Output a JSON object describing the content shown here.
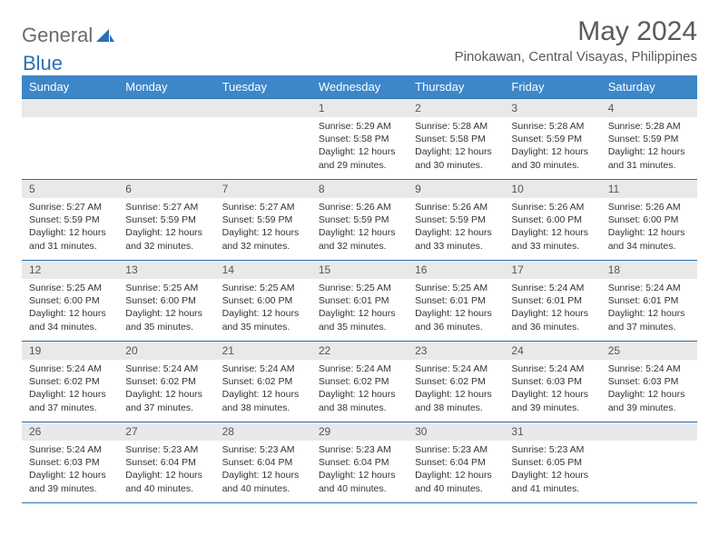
{
  "brand": {
    "part1": "General",
    "part2": "Blue"
  },
  "title": "May 2024",
  "location": "Pinokawan, Central Visayas, Philippines",
  "colors": {
    "header_bg": "#3d87c9",
    "border": "#2c6fb3",
    "daynum_bg": "#e9e9e9",
    "text": "#333333",
    "title_text": "#5a5a5a"
  },
  "weekdays": [
    "Sunday",
    "Monday",
    "Tuesday",
    "Wednesday",
    "Thursday",
    "Friday",
    "Saturday"
  ],
  "weeks": [
    [
      null,
      null,
      null,
      {
        "n": "1",
        "sr": "5:29 AM",
        "ss": "5:58 PM",
        "dl": "12 hours and 29 minutes."
      },
      {
        "n": "2",
        "sr": "5:28 AM",
        "ss": "5:58 PM",
        "dl": "12 hours and 30 minutes."
      },
      {
        "n": "3",
        "sr": "5:28 AM",
        "ss": "5:59 PM",
        "dl": "12 hours and 30 minutes."
      },
      {
        "n": "4",
        "sr": "5:28 AM",
        "ss": "5:59 PM",
        "dl": "12 hours and 31 minutes."
      }
    ],
    [
      {
        "n": "5",
        "sr": "5:27 AM",
        "ss": "5:59 PM",
        "dl": "12 hours and 31 minutes."
      },
      {
        "n": "6",
        "sr": "5:27 AM",
        "ss": "5:59 PM",
        "dl": "12 hours and 32 minutes."
      },
      {
        "n": "7",
        "sr": "5:27 AM",
        "ss": "5:59 PM",
        "dl": "12 hours and 32 minutes."
      },
      {
        "n": "8",
        "sr": "5:26 AM",
        "ss": "5:59 PM",
        "dl": "12 hours and 32 minutes."
      },
      {
        "n": "9",
        "sr": "5:26 AM",
        "ss": "5:59 PM",
        "dl": "12 hours and 33 minutes."
      },
      {
        "n": "10",
        "sr": "5:26 AM",
        "ss": "6:00 PM",
        "dl": "12 hours and 33 minutes."
      },
      {
        "n": "11",
        "sr": "5:26 AM",
        "ss": "6:00 PM",
        "dl": "12 hours and 34 minutes."
      }
    ],
    [
      {
        "n": "12",
        "sr": "5:25 AM",
        "ss": "6:00 PM",
        "dl": "12 hours and 34 minutes."
      },
      {
        "n": "13",
        "sr": "5:25 AM",
        "ss": "6:00 PM",
        "dl": "12 hours and 35 minutes."
      },
      {
        "n": "14",
        "sr": "5:25 AM",
        "ss": "6:00 PM",
        "dl": "12 hours and 35 minutes."
      },
      {
        "n": "15",
        "sr": "5:25 AM",
        "ss": "6:01 PM",
        "dl": "12 hours and 35 minutes."
      },
      {
        "n": "16",
        "sr": "5:25 AM",
        "ss": "6:01 PM",
        "dl": "12 hours and 36 minutes."
      },
      {
        "n": "17",
        "sr": "5:24 AM",
        "ss": "6:01 PM",
        "dl": "12 hours and 36 minutes."
      },
      {
        "n": "18",
        "sr": "5:24 AM",
        "ss": "6:01 PM",
        "dl": "12 hours and 37 minutes."
      }
    ],
    [
      {
        "n": "19",
        "sr": "5:24 AM",
        "ss": "6:02 PM",
        "dl": "12 hours and 37 minutes."
      },
      {
        "n": "20",
        "sr": "5:24 AM",
        "ss": "6:02 PM",
        "dl": "12 hours and 37 minutes."
      },
      {
        "n": "21",
        "sr": "5:24 AM",
        "ss": "6:02 PM",
        "dl": "12 hours and 38 minutes."
      },
      {
        "n": "22",
        "sr": "5:24 AM",
        "ss": "6:02 PM",
        "dl": "12 hours and 38 minutes."
      },
      {
        "n": "23",
        "sr": "5:24 AM",
        "ss": "6:02 PM",
        "dl": "12 hours and 38 minutes."
      },
      {
        "n": "24",
        "sr": "5:24 AM",
        "ss": "6:03 PM",
        "dl": "12 hours and 39 minutes."
      },
      {
        "n": "25",
        "sr": "5:24 AM",
        "ss": "6:03 PM",
        "dl": "12 hours and 39 minutes."
      }
    ],
    [
      {
        "n": "26",
        "sr": "5:24 AM",
        "ss": "6:03 PM",
        "dl": "12 hours and 39 minutes."
      },
      {
        "n": "27",
        "sr": "5:23 AM",
        "ss": "6:04 PM",
        "dl": "12 hours and 40 minutes."
      },
      {
        "n": "28",
        "sr": "5:23 AM",
        "ss": "6:04 PM",
        "dl": "12 hours and 40 minutes."
      },
      {
        "n": "29",
        "sr": "5:23 AM",
        "ss": "6:04 PM",
        "dl": "12 hours and 40 minutes."
      },
      {
        "n": "30",
        "sr": "5:23 AM",
        "ss": "6:04 PM",
        "dl": "12 hours and 40 minutes."
      },
      {
        "n": "31",
        "sr": "5:23 AM",
        "ss": "6:05 PM",
        "dl": "12 hours and 41 minutes."
      },
      null
    ]
  ],
  "labels": {
    "sunrise": "Sunrise:",
    "sunset": "Sunset:",
    "daylight": "Daylight:"
  }
}
